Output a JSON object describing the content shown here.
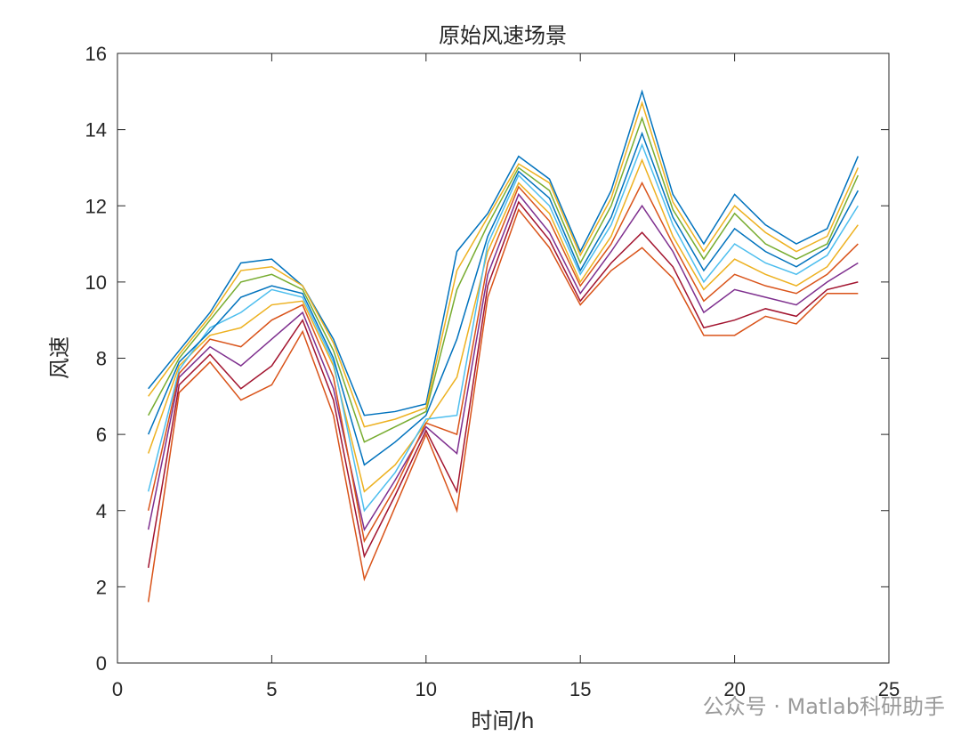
{
  "chart_data": {
    "type": "line",
    "title": "原始风速场景",
    "x_label": "时间/h",
    "y_label": "风速",
    "watermark": "公众号 · Matlab科研助手",
    "x": [
      1,
      2,
      3,
      4,
      5,
      6,
      7,
      8,
      9,
      10,
      11,
      12,
      13,
      14,
      15,
      16,
      17,
      18,
      19,
      20,
      21,
      22,
      23,
      24
    ],
    "xlim": [
      0,
      25
    ],
    "xticks": [
      0,
      5,
      10,
      15,
      20,
      25
    ],
    "ylim": [
      0,
      16
    ],
    "yticks": [
      0,
      2,
      4,
      6,
      8,
      10,
      12,
      14,
      16
    ],
    "series": [
      {
        "color": "#0072BD",
        "values": [
          7.2,
          8.2,
          9.2,
          10.5,
          10.6,
          9.9,
          8.5,
          6.5,
          6.6,
          6.8,
          10.8,
          11.8,
          13.3,
          12.7,
          10.8,
          12.4,
          15.0,
          12.3,
          11.0,
          12.3,
          11.5,
          11.0,
          11.4,
          13.3
        ]
      },
      {
        "color": "#D95319",
        "values": [
          1.6,
          7.1,
          7.9,
          6.9,
          7.3,
          8.7,
          6.5,
          2.2,
          4.1,
          6.0,
          4.0,
          9.6,
          11.9,
          10.9,
          9.4,
          10.3,
          10.9,
          10.1,
          8.6,
          8.6,
          9.1,
          8.9,
          9.7,
          9.7
        ]
      },
      {
        "color": "#EDB120",
        "values": [
          5.5,
          7.8,
          8.6,
          8.8,
          9.4,
          9.5,
          7.8,
          4.5,
          5.2,
          6.3,
          7.5,
          10.8,
          12.6,
          11.8,
          10.0,
          11.2,
          13.2,
          11.2,
          9.8,
          10.6,
          10.2,
          9.9,
          10.4,
          11.5
        ]
      },
      {
        "color": "#7E2F8E",
        "values": [
          3.5,
          7.5,
          8.3,
          7.8,
          8.5,
          9.2,
          7.2,
          3.5,
          4.8,
          6.2,
          5.5,
          10.2,
          12.3,
          11.3,
          9.7,
          10.8,
          12.0,
          10.8,
          9.2,
          9.8,
          9.6,
          9.4,
          10.0,
          10.5
        ]
      },
      {
        "color": "#77AC30",
        "values": [
          6.5,
          8.0,
          9.0,
          10.0,
          10.2,
          9.8,
          8.2,
          5.8,
          6.2,
          6.6,
          9.8,
          11.5,
          13.0,
          12.4,
          10.5,
          12.0,
          14.3,
          11.9,
          10.6,
          11.8,
          11.0,
          10.6,
          11.0,
          12.8
        ]
      },
      {
        "color": "#4DBEEE",
        "values": [
          4.5,
          7.7,
          8.8,
          9.2,
          9.8,
          9.6,
          7.9,
          4.0,
          5.0,
          6.4,
          6.5,
          11.0,
          12.8,
          12.0,
          10.2,
          11.5,
          13.6,
          11.5,
          10.0,
          11.0,
          10.5,
          10.2,
          10.7,
          12.0
        ]
      },
      {
        "color": "#A2142F",
        "values": [
          2.5,
          7.3,
          8.1,
          7.2,
          7.8,
          9.0,
          6.9,
          2.8,
          4.4,
          6.1,
          4.5,
          9.9,
          12.1,
          11.1,
          9.5,
          10.5,
          11.3,
          10.4,
          8.8,
          9.0,
          9.3,
          9.1,
          9.8,
          10.0
        ]
      },
      {
        "color": "#0072BD",
        "values": [
          6.0,
          7.9,
          8.7,
          9.6,
          9.9,
          9.7,
          8.0,
          5.2,
          5.8,
          6.5,
          8.5,
          11.2,
          12.9,
          12.2,
          10.3,
          11.7,
          13.9,
          11.7,
          10.3,
          11.4,
          10.8,
          10.4,
          10.9,
          12.4
        ]
      },
      {
        "color": "#D95319",
        "values": [
          4.0,
          7.6,
          8.5,
          8.3,
          9.0,
          9.4,
          7.5,
          3.2,
          4.6,
          6.3,
          6.0,
          10.5,
          12.5,
          11.6,
          9.9,
          11.0,
          12.6,
          11.0,
          9.5,
          10.2,
          9.9,
          9.7,
          10.2,
          11.0
        ]
      },
      {
        "color": "#EDB120",
        "values": [
          7.0,
          8.1,
          9.1,
          10.3,
          10.4,
          9.9,
          8.4,
          6.2,
          6.4,
          6.7,
          10.3,
          11.7,
          13.1,
          12.6,
          10.7,
          12.2,
          14.7,
          12.1,
          10.8,
          12.0,
          11.3,
          10.8,
          11.2,
          13.0
        ]
      }
    ]
  }
}
